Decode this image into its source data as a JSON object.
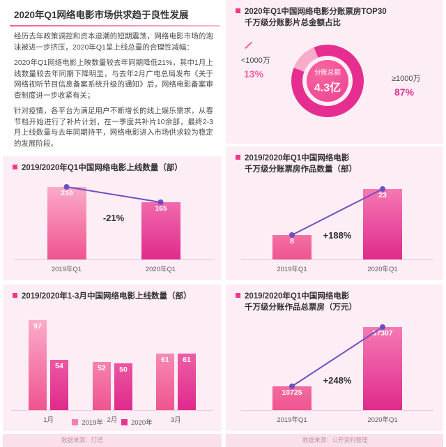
{
  "page": {
    "title": "2020年Q1网络电影市场供求趋于良性发展",
    "paragraphs": [
      "经历去年政策调控和资本退潮的短期震荡，网络电影市场的泡沫被进一步挤压，2020年Q1呈上线总量的合理性减幅：",
      "2020年Q1网络电影上映数量较去年同期降低21%，其中1月上线数量较去年同期下降明显，与去年2月广电总局发布《关于网络视听节目信息备案系统升级的通知》后，网络电影备案审查制度进一步收紧有关；",
      "针对疫情，各平台为满足用户不断增长的线上娱乐需求，从春节档开始进行了补片计划，在一季度共补片10余部，最终2-3月上线数量与去年同期持平，网络电影进入市场供求较为稳定的发展阶段。"
    ],
    "footer_left": "数据来源：灯塔",
    "footer_right": "数据来源：公开资料整理"
  },
  "colors": {
    "accent_pink": "#f2378a",
    "bar_2019_light": "#fcb3cd",
    "bar_2019_dark": "#ef5490",
    "bar_2020_light": "#f883b8",
    "bar_2020_dark": "#df2a8c",
    "trend_purple": "#6f4fc0",
    "donut_light": "#f9abcb",
    "donut_dark": "#e52e90"
  },
  "chart_data": [
    {
      "type": "bar",
      "title": "2019/2020年Q1中国网络电影上线数量（部）",
      "title_lines": [
        "2019/2020年Q1中国网络电影上线数量（部）"
      ],
      "categories": [
        "2019年Q1",
        "2020年Q1"
      ],
      "values": [
        210,
        165
      ],
      "change_label": "-21%",
      "ylim": [
        0,
        230
      ]
    },
    {
      "type": "bar",
      "title": "2019/2020年1-3月中国网络电影上线数量（部）",
      "title_lines": [
        "2019/2020年1-3月中国网络电影上线数量（部）"
      ],
      "categories": [
        "1月",
        "2月",
        "3月"
      ],
      "series": [
        {
          "name": "2019年",
          "values": [
            97,
            52,
            61
          ]
        },
        {
          "name": "2020年",
          "values": [
            54,
            50,
            61
          ]
        }
      ],
      "ylim": [
        0,
        105
      ],
      "legend_position": "bottom"
    },
    {
      "type": "pie",
      "title": "2020年Q1中国网络电影分账票房TOP30千万级分账影片总金额占比",
      "title_lines": [
        "2020年Q1中国网络电影分账票房TOP30",
        "千万级分账影片总金额占比"
      ],
      "slices": [
        {
          "label": "<1000万",
          "pct": 13,
          "pct_label": "13%"
        },
        {
          "label": "≥1000万",
          "pct": 87,
          "pct_label": "87%"
        }
      ],
      "center_label": "分账总额",
      "center_value": "4.3亿"
    },
    {
      "type": "bar",
      "title": "2019/2020年Q1中国网络电影千万级分账票房作品数量（部）",
      "title_lines": [
        "2019/2020年Q1中国网络电影",
        "千万级分账票房作品数量（部）"
      ],
      "categories": [
        "2019年Q1",
        "2020年Q1"
      ],
      "values": [
        8,
        23
      ],
      "change_label": "+188%",
      "ylim": [
        0,
        26
      ]
    },
    {
      "type": "bar",
      "title": "2019/2020年Q1中国网络电影千万级分账作品总票房（万元）",
      "title_lines": [
        "2019/2020年Q1中国网络电影",
        "千万级分账作品总票房（万元）"
      ],
      "categories": [
        "2019年Q1",
        "2020年Q1"
      ],
      "values": [
        10725,
        37307
      ],
      "change_label": "+248%",
      "ylim": [
        0,
        42000
      ]
    }
  ]
}
